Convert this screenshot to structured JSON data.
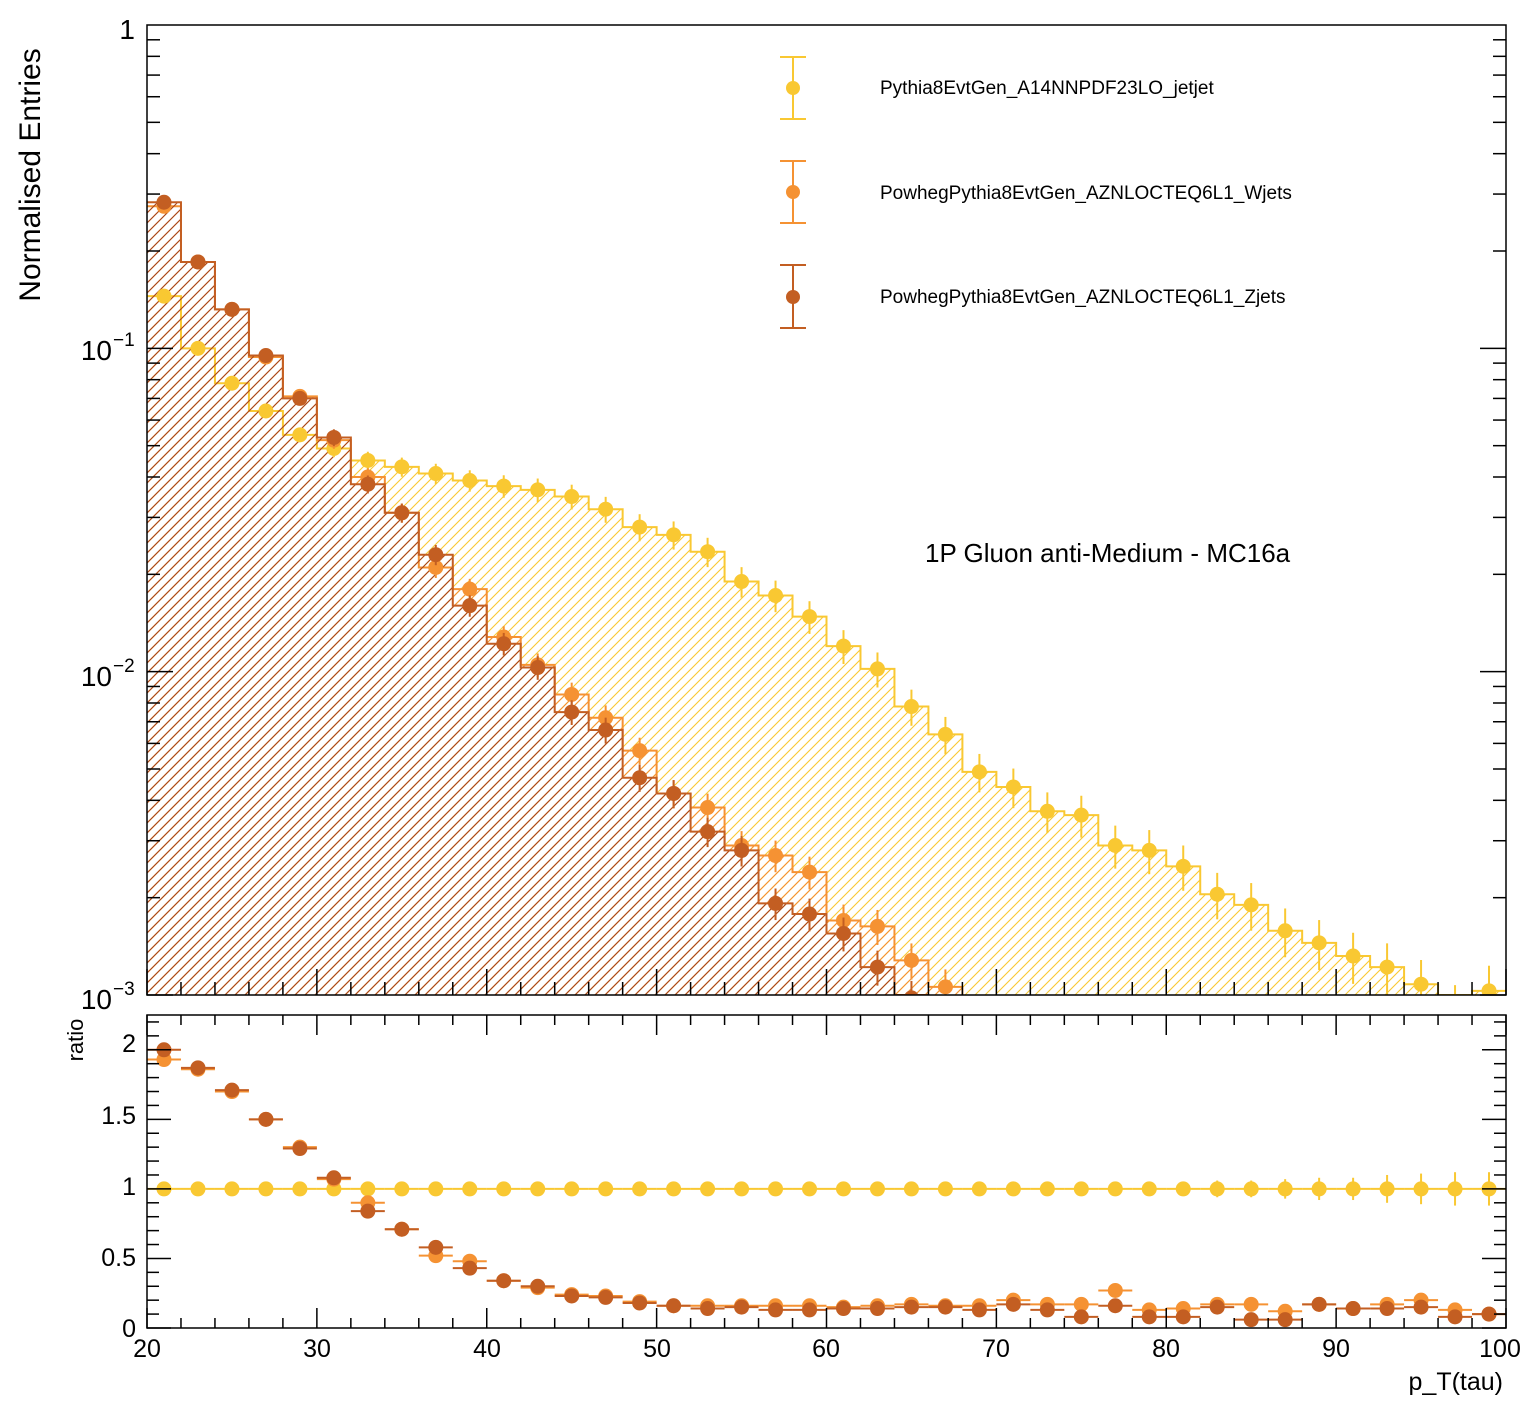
{
  "chart_data": [
    {
      "type": "step-histogram",
      "panel": "main",
      "ylabel": "Normalised Entries",
      "yscale": "log",
      "ylim": [
        0.001,
        1
      ],
      "xlim": [
        20,
        100
      ],
      "annotation": "1P Gluon anti-Medium - MC16a",
      "ytick_labels": [
        "1",
        "10",
        "10"
      ],
      "ytick_exponents": [
        "",
        "−1",
        "−2"
      ],
      "ytick_bottom_label": "10",
      "ytick_bottom_exponent": "−3",
      "legend_position": "top-right",
      "bin_width": 2,
      "bin_centers": [
        21,
        23,
        25,
        27,
        29,
        31,
        33,
        35,
        37,
        39,
        41,
        43,
        45,
        47,
        49,
        51,
        53,
        55,
        57,
        59,
        61,
        63,
        65,
        67,
        69,
        71,
        73,
        75,
        77,
        79,
        81,
        83,
        85,
        87,
        89,
        91,
        93,
        95,
        97,
        99
      ],
      "series": [
        {
          "name": "Pythia8EvtGen_A14NNPDF23LO_jetjet",
          "color": "#f9c832",
          "values": [
            0.145,
            0.1,
            0.078,
            0.064,
            0.054,
            0.049,
            0.045,
            0.043,
            0.041,
            0.039,
            0.0375,
            0.0365,
            0.0348,
            0.0318,
            0.028,
            0.0265,
            0.0235,
            0.019,
            0.0172,
            0.0148,
            0.012,
            0.0102,
            0.0078,
            0.0064,
            0.0049,
            0.0044,
            0.0037,
            0.0036,
            0.0029,
            0.0028,
            0.0025,
            0.00205,
            0.0019,
            0.00158,
            0.00145,
            0.00132,
            0.00122,
            0.00108,
            0.0009,
            0.00103
          ]
        },
        {
          "name": "PowhegPythia8EvtGen_AZNLOCTEQ6L1_Wjets",
          "color": "#f59233",
          "values": [
            0.275,
            0.185,
            0.132,
            0.094,
            0.071,
            0.052,
            0.04,
            0.031,
            0.021,
            0.018,
            0.0128,
            0.0105,
            0.0085,
            0.0072,
            0.0057,
            0.0042,
            0.0038,
            0.0029,
            0.0027,
            0.0024,
            0.0017,
            0.00163,
            0.00128,
            0.00106,
            0.0,
            0.0,
            0.0,
            0.0,
            0.0,
            0.0,
            0.0,
            0.0,
            0.0,
            0.0,
            0.0,
            0.0,
            0.0,
            0.0,
            0.0,
            0.0
          ]
        },
        {
          "name": "PowhegPythia8EvtGen_AZNLOCTEQ6L1_Zjets",
          "color": "#c35e22",
          "values": [
            0.283,
            0.185,
            0.132,
            0.095,
            0.07,
            0.053,
            0.038,
            0.031,
            0.023,
            0.016,
            0.0122,
            0.0103,
            0.0075,
            0.0066,
            0.0047,
            0.0042,
            0.0032,
            0.0028,
            0.00192,
            0.00178,
            0.00155,
            0.00122,
            0.00098,
            0.0,
            0.0,
            0.0,
            0.0,
            0.0,
            0.0,
            0.0,
            0.0,
            0.0,
            0.0,
            0.0,
            0.0,
            0.0,
            0.0,
            0.0,
            0.0,
            0.0
          ]
        }
      ]
    },
    {
      "type": "scatter",
      "panel": "ratio",
      "ylabel": "ratio",
      "xlabel": "p_T(tau)",
      "ylim": [
        0,
        2.25
      ],
      "xlim": [
        20,
        100
      ],
      "ytick_labels": [
        "0",
        "0.5",
        "1",
        "1.5",
        "2"
      ],
      "xtick_labels": [
        "20",
        "30",
        "40",
        "50",
        "60",
        "70",
        "80",
        "90",
        "100"
      ],
      "series": [
        {
          "name": "Pythia8EvtGen_A14NNPDF23LO_jetjet",
          "color": "#f9c832",
          "values": [
            1,
            1,
            1,
            1,
            1,
            1,
            1,
            1,
            1,
            1,
            1,
            1,
            1,
            1,
            1,
            1,
            1,
            1,
            1,
            1,
            1,
            1,
            1,
            1,
            1,
            1,
            1,
            1,
            1,
            1,
            1,
            1,
            1,
            1,
            1,
            1,
            1,
            1,
            1,
            1
          ],
          "errors": [
            0.01,
            0.01,
            0.01,
            0.01,
            0.01,
            0.01,
            0.01,
            0.01,
            0.01,
            0.01,
            0.01,
            0.01,
            0.01,
            0.01,
            0.01,
            0.01,
            0.01,
            0.01,
            0.01,
            0.02,
            0.02,
            0.02,
            0.02,
            0.02,
            0.03,
            0.03,
            0.03,
            0.03,
            0.04,
            0.05,
            0.05,
            0.06,
            0.06,
            0.07,
            0.08,
            0.08,
            0.1,
            0.11,
            0.12,
            0.12
          ]
        },
        {
          "name": "PowhegPythia8EvtGen_AZNLOCTEQ6L1_Wjets",
          "color": "#f59233",
          "values": [
            1.93,
            1.86,
            1.7,
            1.5,
            1.3,
            1.07,
            0.9,
            0.71,
            0.52,
            0.48,
            0.34,
            0.29,
            0.24,
            0.23,
            0.19,
            0.16,
            0.16,
            0.16,
            0.16,
            0.16,
            0.15,
            0.16,
            0.17,
            0.16,
            0.16,
            0.2,
            0.17,
            0.17,
            0.27,
            0.13,
            0.14,
            0.17,
            0.17,
            0.12,
            0.17,
            0.14,
            0.17,
            0.2,
            0.13,
            0.1
          ]
        },
        {
          "name": "PowhegPythia8EvtGen_AZNLOCTEQ6L1_Zjets",
          "color": "#c35e22",
          "values": [
            2.0,
            1.87,
            1.71,
            1.5,
            1.29,
            1.08,
            0.84,
            0.71,
            0.58,
            0.43,
            0.34,
            0.3,
            0.23,
            0.22,
            0.18,
            0.16,
            0.14,
            0.15,
            0.13,
            0.13,
            0.14,
            0.14,
            0.15,
            0.15,
            0.13,
            0.17,
            0.13,
            0.08,
            0.16,
            0.08,
            0.08,
            0.15,
            0.06,
            0.06,
            0.17,
            0.14,
            0.14,
            0.15,
            0.08,
            0.1
          ]
        }
      ]
    }
  ]
}
